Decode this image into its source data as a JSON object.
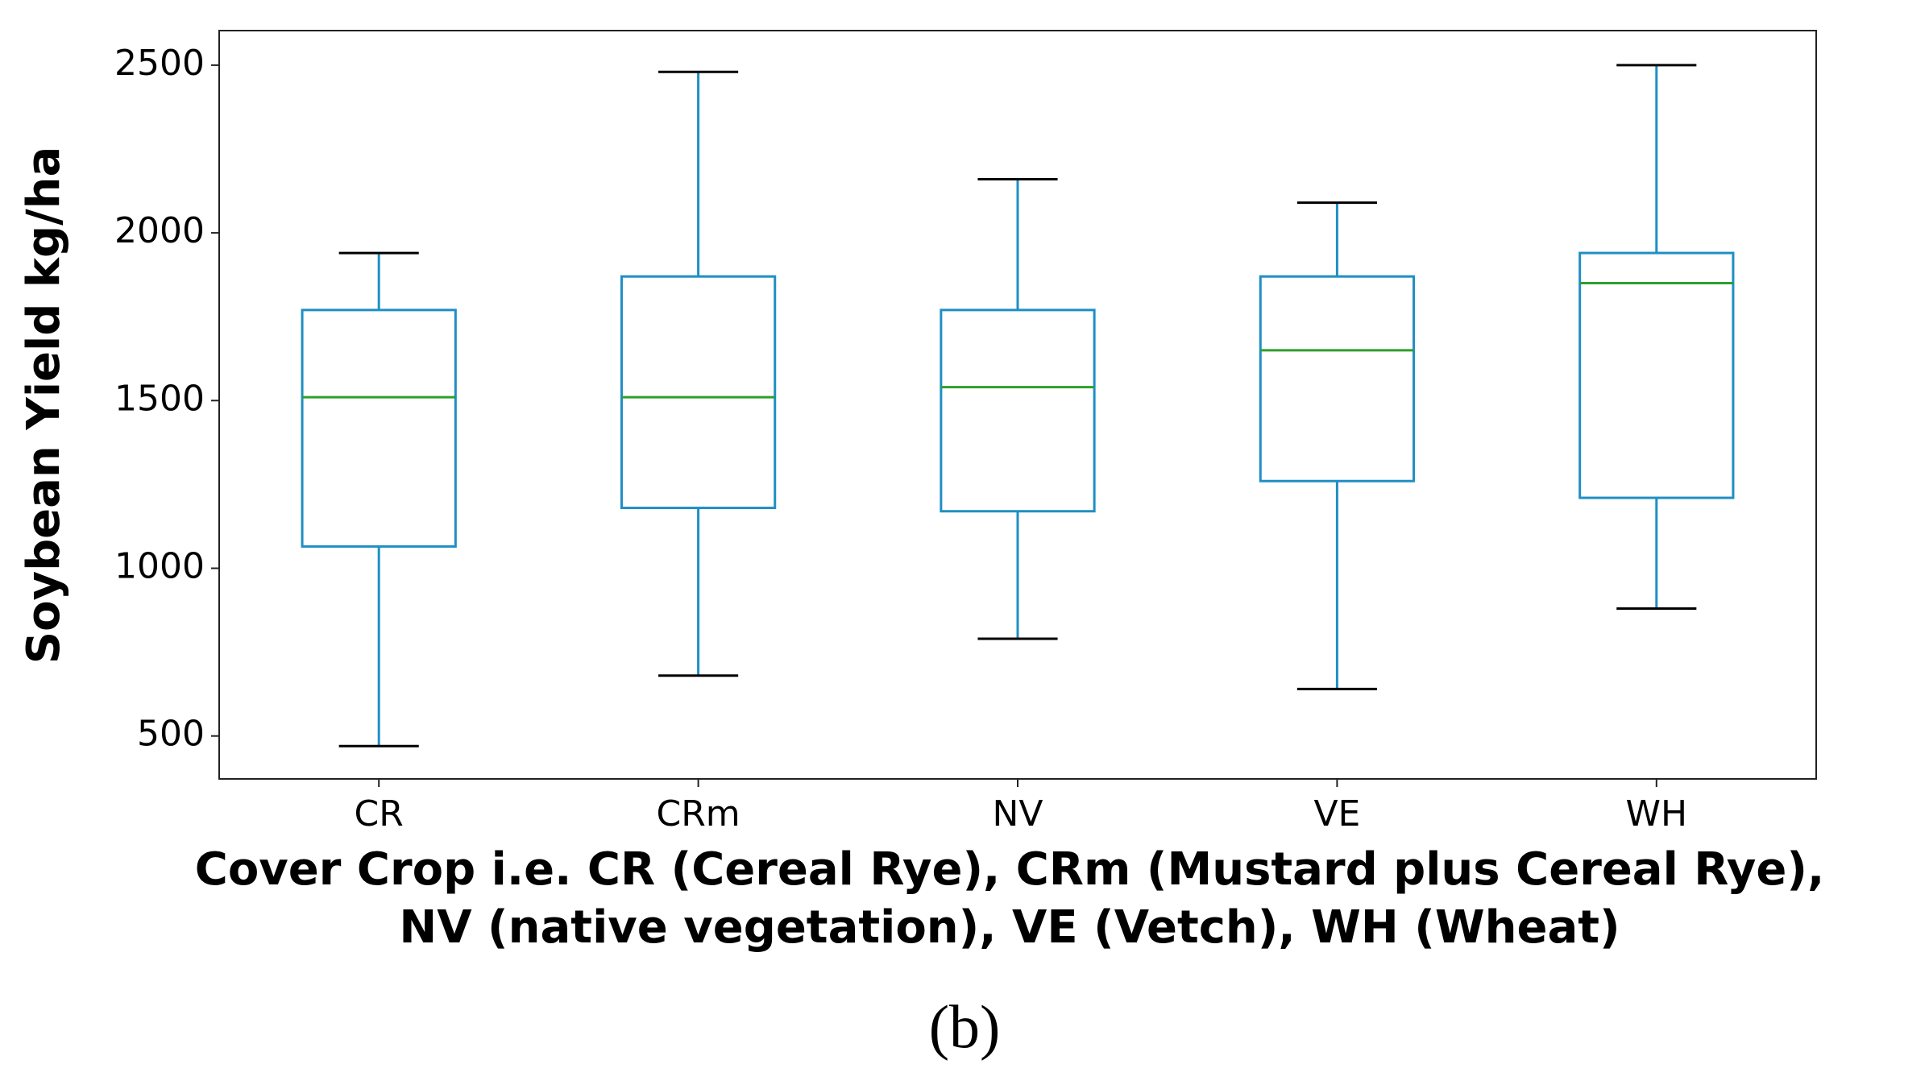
{
  "chart_data": {
    "type": "box",
    "ylabel": "Soybean Yield kg/ha",
    "xlabel": [
      "Cover Crop i.e. CR (Cereal Rye), CRm (Mustard plus Cereal Rye),",
      "NV (native vegetation), VE (Vetch), WH (Wheat)"
    ],
    "categories": [
      "CR",
      "CRm",
      "NV",
      "VE",
      "WH"
    ],
    "boxes": [
      {
        "whislo": 470,
        "q1": 1065,
        "med": 1510,
        "q3": 1770,
        "whishi": 1940
      },
      {
        "whislo": 680,
        "q1": 1180,
        "med": 1510,
        "q3": 1870,
        "whishi": 2480
      },
      {
        "whislo": 790,
        "q1": 1170,
        "med": 1540,
        "q3": 1770,
        "whishi": 2160
      },
      {
        "whislo": 640,
        "q1": 1260,
        "med": 1650,
        "q3": 1870,
        "whishi": 2090
      },
      {
        "whislo": 880,
        "q1": 1210,
        "med": 1850,
        "q3": 1940,
        "whishi": 2500
      }
    ],
    "box_color": "#1f8fc4",
    "median_color": "#2ca02c",
    "cap_color": "#000000",
    "ylim": [
      372,
      2603
    ],
    "yticks": [
      500,
      1000,
      1500,
      2000,
      2500
    ],
    "grid": false
  },
  "caption": "(b)"
}
